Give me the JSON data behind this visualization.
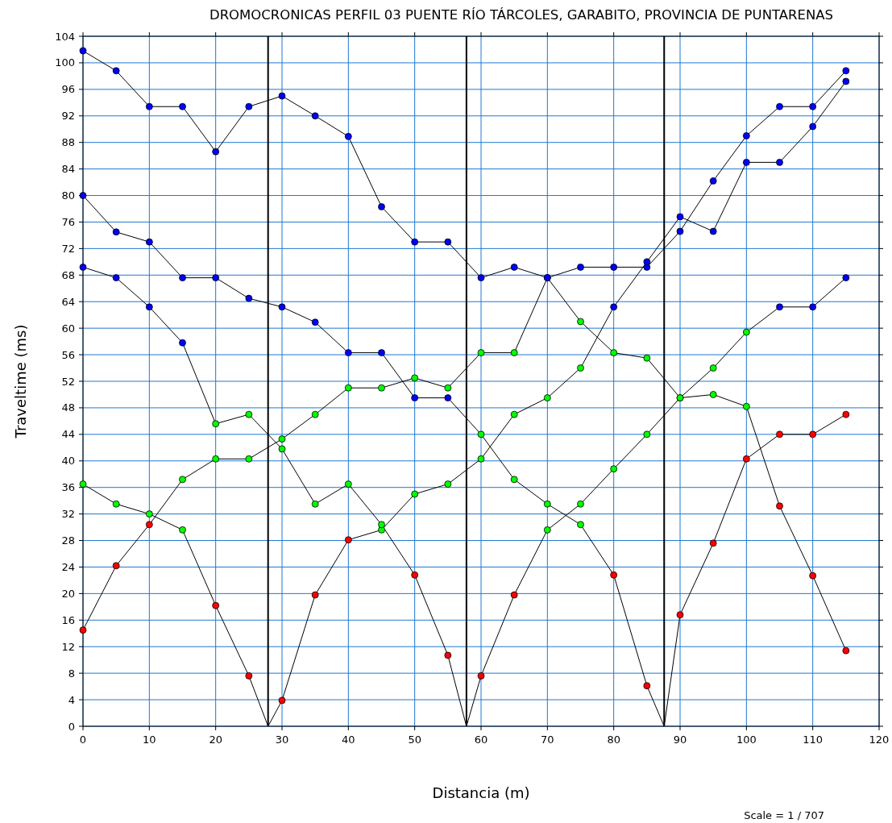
{
  "chart_data": {
    "type": "line",
    "title": "DROMOCRONICAS PERFIL 03 PUENTE RÍO TÁRCOLES, GARABITO, PROVINCIA DE PUNTARENAS",
    "xlabel": "Distancia (m)",
    "ylabel": "Traveltime (ms)",
    "annotations": [
      "Scale = 1 / 707"
    ],
    "xlim": [
      0,
      120
    ],
    "xticks": [
      0,
      10,
      20,
      30,
      40,
      50,
      60,
      70,
      80,
      90,
      100,
      110,
      120
    ],
    "ylim": [
      0,
      104
    ],
    "yticks": [
      0,
      4,
      8,
      12,
      16,
      20,
      24,
      28,
      32,
      36,
      40,
      44,
      48,
      52,
      56,
      60,
      64,
      68,
      72,
      76,
      80,
      84,
      88,
      92,
      96,
      100,
      104
    ],
    "grid": true,
    "marker": "circle",
    "line_style": "solid",
    "ref_lines": [
      {
        "axis": "x",
        "value": 27.9,
        "color": "#000000"
      },
      {
        "axis": "x",
        "value": 57.8,
        "color": "#000000"
      },
      {
        "axis": "x",
        "value": 87.6,
        "color": "#000000"
      }
    ],
    "series": [
      {
        "color": "#000000",
        "x": [
          0,
          5,
          10,
          15,
          20,
          25,
          30,
          35,
          40,
          45,
          50,
          55,
          60,
          65,
          70,
          75,
          80,
          85,
          90,
          95,
          100,
          105,
          110,
          115
        ],
        "values": [
          14.5,
          24.2,
          30.4,
          37.2,
          40.3,
          40.3,
          43.3,
          47,
          51,
          51,
          52.5,
          51,
          56.3,
          56.3,
          67.6,
          69.2,
          69.2,
          69.2,
          74.6,
          82.2,
          89,
          93.4,
          93.4,
          98.8
        ],
        "colors": [
          "#ff0000",
          "#ff0000",
          "#ff0000",
          "#00ff00",
          "#00ff00",
          "#00ff00",
          "#00ff00",
          "#00ff00",
          "#00ff00",
          "#00ff00",
          "#00ff00",
          "#00ff00",
          "#00ff00",
          "#00ff00",
          "#0000ff",
          "#0000ff",
          "#0000ff",
          "#0000ff",
          "#0000ff",
          "#0000ff",
          "#0000ff",
          "#0000ff",
          "#0000ff",
          "#0000ff"
        ]
      },
      {
        "color": "#000000",
        "x": [
          0,
          5,
          10,
          15,
          20,
          25,
          27.9,
          30,
          35,
          40,
          45,
          50,
          55,
          60,
          65,
          70,
          75,
          80,
          85,
          90,
          95,
          100,
          105,
          110,
          115
        ],
        "values": [
          36.5,
          33.5,
          32,
          29.6,
          18.2,
          7.6,
          0,
          3.9,
          19.8,
          28.1,
          29.6,
          35,
          36.5,
          40.3,
          47,
          49.5,
          54,
          63.2,
          70,
          76.8,
          74.6,
          85,
          85,
          90.4,
          97.2
        ],
        "colors": [
          "#00ff00",
          "#00ff00",
          "#00ff00",
          "#00ff00",
          "#ff0000",
          "#ff0000",
          null,
          "#ff0000",
          "#ff0000",
          "#ff0000",
          "#00ff00",
          "#00ff00",
          "#00ff00",
          "#00ff00",
          "#00ff00",
          "#00ff00",
          "#00ff00",
          "#0000ff",
          "#0000ff",
          "#0000ff",
          "#0000ff",
          "#0000ff",
          "#0000ff",
          "#0000ff",
          "#0000ff"
        ]
      },
      {
        "color": "#000000",
        "x": [
          0,
          5,
          10,
          15,
          20,
          25,
          30,
          35,
          40,
          45,
          50,
          55,
          57.8,
          60,
          65,
          70,
          75,
          80,
          85,
          90,
          95,
          100,
          105,
          110,
          115
        ],
        "values": [
          69.2,
          67.6,
          63.2,
          57.8,
          45.6,
          47,
          41.8,
          33.5,
          36.5,
          30.4,
          22.8,
          10.7,
          0,
          7.6,
          19.8,
          29.6,
          33.5,
          38.8,
          44,
          49.5,
          54,
          59.4,
          63.2,
          63.2,
          67.6
        ],
        "colors": [
          "#0000ff",
          "#0000ff",
          "#0000ff",
          "#0000ff",
          "#00ff00",
          "#00ff00",
          "#00ff00",
          "#00ff00",
          "#00ff00",
          "#00ff00",
          "#ff0000",
          "#ff0000",
          null,
          "#ff0000",
          "#ff0000",
          "#00ff00",
          "#00ff00",
          "#00ff00",
          "#00ff00",
          "#00ff00",
          "#00ff00",
          "#00ff00",
          "#0000ff",
          "#0000ff",
          "#0000ff"
        ]
      },
      {
        "color": "#000000",
        "x": [
          0,
          5,
          10,
          15,
          20,
          25,
          30,
          35,
          40,
          45,
          50,
          55,
          60,
          65,
          70,
          75,
          80,
          85,
          87.6,
          90,
          95,
          100,
          105,
          110,
          115
        ],
        "values": [
          80,
          74.5,
          73,
          67.6,
          67.6,
          64.5,
          63.2,
          60.9,
          56.3,
          56.3,
          49.5,
          49.5,
          44,
          37.2,
          33.5,
          30.4,
          22.8,
          6.1,
          0,
          16.8,
          27.6,
          40.3,
          44,
          44,
          47
        ],
        "colors": [
          "#0000ff",
          "#0000ff",
          "#0000ff",
          "#0000ff",
          "#0000ff",
          "#0000ff",
          "#0000ff",
          "#0000ff",
          "#0000ff",
          "#0000ff",
          "#0000ff",
          "#0000ff",
          "#00ff00",
          "#00ff00",
          "#00ff00",
          "#00ff00",
          "#ff0000",
          "#ff0000",
          null,
          "#ff0000",
          "#ff0000",
          "#ff0000",
          "#ff0000",
          "#ff0000",
          "#ff0000"
        ]
      },
      {
        "color": "#000000",
        "x": [
          0,
          5,
          10,
          15,
          20,
          25,
          30,
          35,
          40,
          45,
          50,
          55,
          60,
          65,
          70,
          75,
          80,
          85,
          90,
          95,
          100,
          105,
          110,
          115
        ],
        "values": [
          101.8,
          98.8,
          93.4,
          93.4,
          86.6,
          93.4,
          95,
          92,
          88.9,
          78.3,
          73,
          73,
          67.6,
          69.2,
          67.6,
          61,
          56.3,
          55.5,
          49.5,
          50,
          48.2,
          33.2,
          22.7,
          11.4
        ],
        "colors": [
          "#0000ff",
          "#0000ff",
          "#0000ff",
          "#0000ff",
          "#0000ff",
          "#0000ff",
          "#0000ff",
          "#0000ff",
          "#0000ff",
          "#0000ff",
          "#0000ff",
          "#0000ff",
          "#0000ff",
          "#0000ff",
          "#0000ff",
          "#00ff00",
          "#00ff00",
          "#00ff00",
          "#00ff00",
          "#00ff00",
          "#00ff00",
          "#ff0000",
          "#ff0000",
          "#ff0000"
        ]
      }
    ]
  }
}
